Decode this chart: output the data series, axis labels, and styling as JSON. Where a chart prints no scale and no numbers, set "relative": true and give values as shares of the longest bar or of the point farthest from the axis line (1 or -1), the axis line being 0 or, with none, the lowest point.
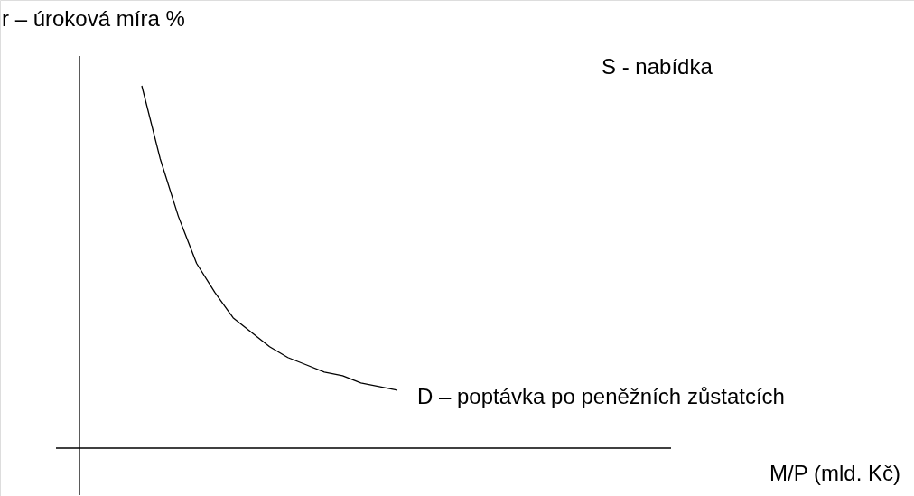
{
  "chart_data": {
    "type": "line",
    "relative": true,
    "ylabel": "r – úroková míra %",
    "annotations": [
      "S - nabídka",
      "M/P (mld. Kč)"
    ],
    "grid": false,
    "marker": "none",
    "line_style": "solid",
    "categories": [
      null,
      null,
      null,
      null,
      null,
      null,
      null,
      null,
      null,
      null,
      null,
      null,
      null,
      null,
      null
    ],
    "series": [
      {
        "name": "D – poptávka po peněžních zůstatcích",
        "color": "#000000",
        "values": [
          1.0,
          0.8,
          0.64,
          0.51,
          0.43,
          0.36,
          0.32,
          0.28,
          0.25,
          0.23,
          0.21,
          0.2,
          0.18,
          0.17,
          0.16
        ]
      }
    ]
  }
}
